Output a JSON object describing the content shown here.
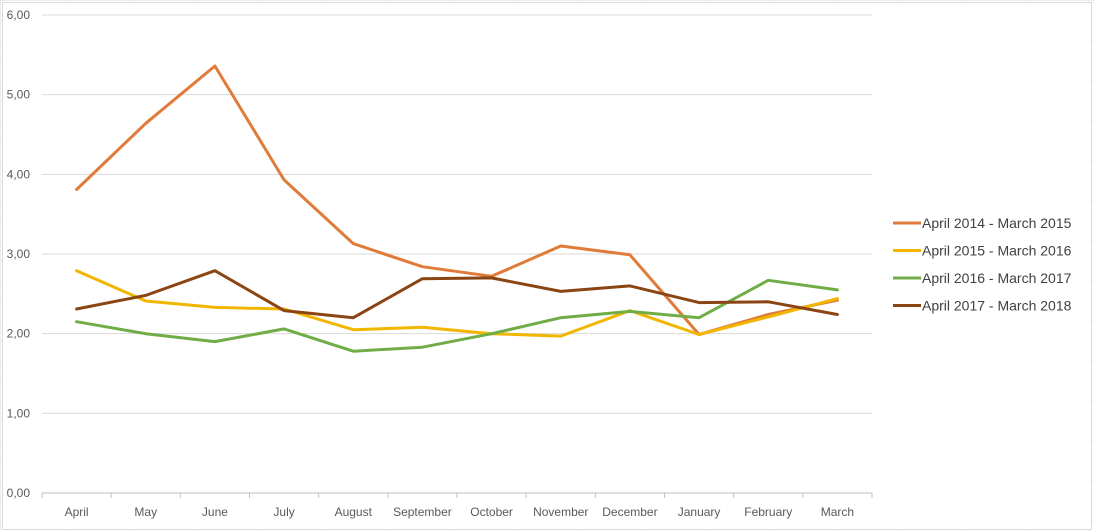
{
  "chart_data": {
    "type": "line",
    "title": "",
    "xlabel": "",
    "ylabel": "",
    "categories": [
      "April",
      "May",
      "June",
      "July",
      "August",
      "September",
      "October",
      "November",
      "December",
      "January",
      "February",
      "March"
    ],
    "ylim": [
      0,
      6
    ],
    "yticks": [
      "0,00",
      "1,00",
      "2,00",
      "3,00",
      "4,00",
      "5,00",
      "6,00"
    ],
    "grid": "horizontal",
    "legend_position": "right",
    "series": [
      {
        "name": "April 2014 - March 2015",
        "color": "#E07B39",
        "values": [
          3.81,
          4.64,
          5.36,
          3.93,
          3.13,
          2.84,
          2.72,
          3.1,
          2.99,
          1.99,
          2.24,
          2.42
        ]
      },
      {
        "name": "April 2015 - March 2016",
        "color": "#F2B600",
        "values": [
          2.79,
          2.41,
          2.33,
          2.31,
          2.05,
          2.08,
          2.0,
          1.97,
          2.29,
          1.99,
          2.21,
          2.44
        ]
      },
      {
        "name": "April 2016 - March 2017",
        "color": "#70AD47",
        "values": [
          2.15,
          2.0,
          1.9,
          2.06,
          1.78,
          1.83,
          2.0,
          2.2,
          2.28,
          2.2,
          2.67,
          2.55
        ]
      },
      {
        "name": "April 2017 - March 2018",
        "color": "#8B4513",
        "values": [
          2.31,
          2.48,
          2.79,
          2.29,
          2.2,
          2.69,
          2.7,
          2.53,
          2.6,
          2.39,
          2.4,
          2.24
        ]
      }
    ]
  }
}
